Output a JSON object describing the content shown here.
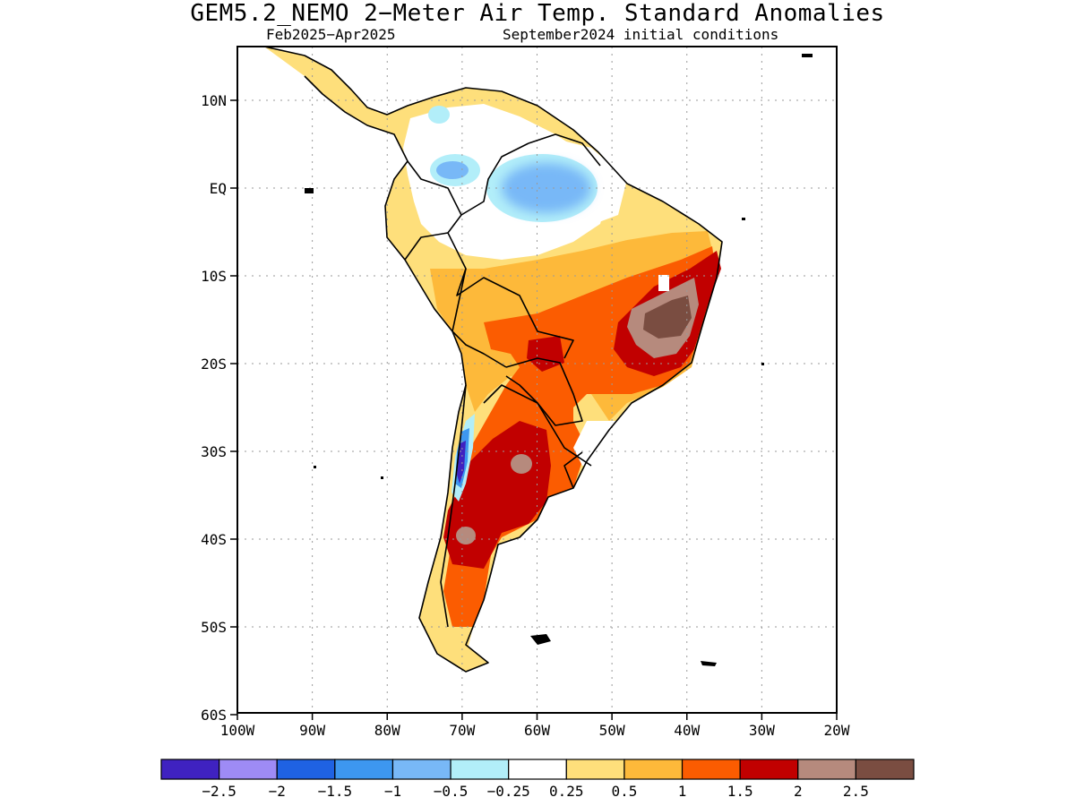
{
  "title": "GEM5.2_NEMO 2−Meter Air Temp. Standard Anomalies",
  "subtitle_period": "Feb2025−Apr2025",
  "subtitle_init": "September2024 initial conditions",
  "axes": {
    "lat_labels": [
      "10N",
      "EQ",
      "10S",
      "20S",
      "30S",
      "40S",
      "50S",
      "60S"
    ],
    "lat_values": [
      10,
      0,
      -10,
      -20,
      -30,
      -40,
      -50,
      -60
    ],
    "lon_labels": [
      "100W",
      "90W",
      "80W",
      "70W",
      "60W",
      "50W",
      "40W",
      "30W",
      "20W"
    ],
    "lon_values": [
      -100,
      -90,
      -80,
      -70,
      -60,
      -50,
      -40,
      -30,
      -20
    ]
  },
  "colorbar": {
    "colors": [
      "#3f22c0",
      "#9e8bf5",
      "#1f62e3",
      "#3d97f0",
      "#78b8f7",
      "#b2eef9",
      "#ffffff",
      "#fedf7b",
      "#fdb93a",
      "#fb5c01",
      "#c10000",
      "#b68a7d",
      "#7a4d41"
    ],
    "labels": [
      "−2.5",
      "−2",
      "−1.5",
      "−1",
      "−0.5",
      "−0.25",
      "0.25",
      "0.5",
      "1",
      "1.5",
      "2",
      "2.5"
    ]
  }
}
